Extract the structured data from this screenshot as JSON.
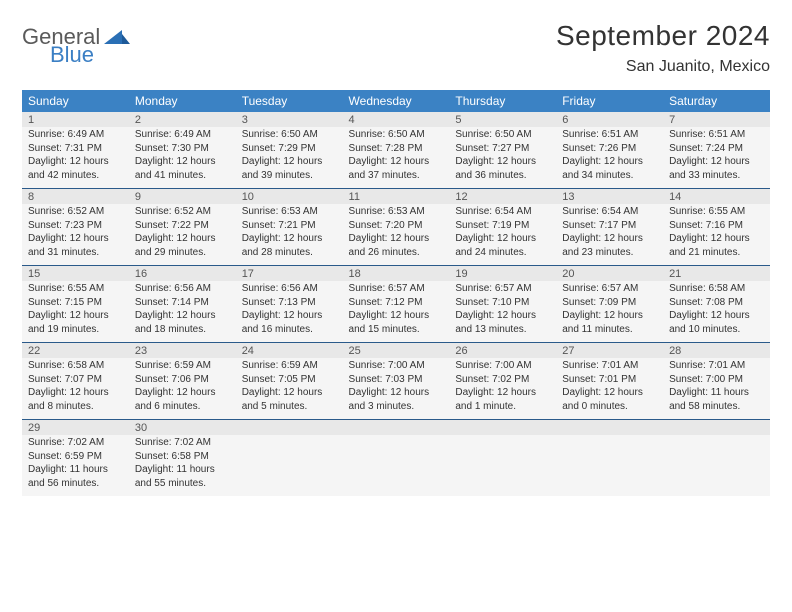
{
  "logo": {
    "word1": "General",
    "word2": "Blue",
    "icon_color": "#2a6fb5"
  },
  "title": "September 2024",
  "location": "San Juanito, Mexico",
  "colors": {
    "header_bg": "#3b82c4",
    "header_text": "#ffffff",
    "row_border": "#2a5a8a",
    "daynum_bg": "#e8e8e8",
    "detail_bg": "#f5f5f5",
    "text": "#333333"
  },
  "day_headers": [
    "Sunday",
    "Monday",
    "Tuesday",
    "Wednesday",
    "Thursday",
    "Friday",
    "Saturday"
  ],
  "weeks": [
    [
      {
        "n": "1",
        "sr": "Sunrise: 6:49 AM",
        "ss": "Sunset: 7:31 PM",
        "dl": "Daylight: 12 hours and 42 minutes."
      },
      {
        "n": "2",
        "sr": "Sunrise: 6:49 AM",
        "ss": "Sunset: 7:30 PM",
        "dl": "Daylight: 12 hours and 41 minutes."
      },
      {
        "n": "3",
        "sr": "Sunrise: 6:50 AM",
        "ss": "Sunset: 7:29 PM",
        "dl": "Daylight: 12 hours and 39 minutes."
      },
      {
        "n": "4",
        "sr": "Sunrise: 6:50 AM",
        "ss": "Sunset: 7:28 PM",
        "dl": "Daylight: 12 hours and 37 minutes."
      },
      {
        "n": "5",
        "sr": "Sunrise: 6:50 AM",
        "ss": "Sunset: 7:27 PM",
        "dl": "Daylight: 12 hours and 36 minutes."
      },
      {
        "n": "6",
        "sr": "Sunrise: 6:51 AM",
        "ss": "Sunset: 7:26 PM",
        "dl": "Daylight: 12 hours and 34 minutes."
      },
      {
        "n": "7",
        "sr": "Sunrise: 6:51 AM",
        "ss": "Sunset: 7:24 PM",
        "dl": "Daylight: 12 hours and 33 minutes."
      }
    ],
    [
      {
        "n": "8",
        "sr": "Sunrise: 6:52 AM",
        "ss": "Sunset: 7:23 PM",
        "dl": "Daylight: 12 hours and 31 minutes."
      },
      {
        "n": "9",
        "sr": "Sunrise: 6:52 AM",
        "ss": "Sunset: 7:22 PM",
        "dl": "Daylight: 12 hours and 29 minutes."
      },
      {
        "n": "10",
        "sr": "Sunrise: 6:53 AM",
        "ss": "Sunset: 7:21 PM",
        "dl": "Daylight: 12 hours and 28 minutes."
      },
      {
        "n": "11",
        "sr": "Sunrise: 6:53 AM",
        "ss": "Sunset: 7:20 PM",
        "dl": "Daylight: 12 hours and 26 minutes."
      },
      {
        "n": "12",
        "sr": "Sunrise: 6:54 AM",
        "ss": "Sunset: 7:19 PM",
        "dl": "Daylight: 12 hours and 24 minutes."
      },
      {
        "n": "13",
        "sr": "Sunrise: 6:54 AM",
        "ss": "Sunset: 7:17 PM",
        "dl": "Daylight: 12 hours and 23 minutes."
      },
      {
        "n": "14",
        "sr": "Sunrise: 6:55 AM",
        "ss": "Sunset: 7:16 PM",
        "dl": "Daylight: 12 hours and 21 minutes."
      }
    ],
    [
      {
        "n": "15",
        "sr": "Sunrise: 6:55 AM",
        "ss": "Sunset: 7:15 PM",
        "dl": "Daylight: 12 hours and 19 minutes."
      },
      {
        "n": "16",
        "sr": "Sunrise: 6:56 AM",
        "ss": "Sunset: 7:14 PM",
        "dl": "Daylight: 12 hours and 18 minutes."
      },
      {
        "n": "17",
        "sr": "Sunrise: 6:56 AM",
        "ss": "Sunset: 7:13 PM",
        "dl": "Daylight: 12 hours and 16 minutes."
      },
      {
        "n": "18",
        "sr": "Sunrise: 6:57 AM",
        "ss": "Sunset: 7:12 PM",
        "dl": "Daylight: 12 hours and 15 minutes."
      },
      {
        "n": "19",
        "sr": "Sunrise: 6:57 AM",
        "ss": "Sunset: 7:10 PM",
        "dl": "Daylight: 12 hours and 13 minutes."
      },
      {
        "n": "20",
        "sr": "Sunrise: 6:57 AM",
        "ss": "Sunset: 7:09 PM",
        "dl": "Daylight: 12 hours and 11 minutes."
      },
      {
        "n": "21",
        "sr": "Sunrise: 6:58 AM",
        "ss": "Sunset: 7:08 PM",
        "dl": "Daylight: 12 hours and 10 minutes."
      }
    ],
    [
      {
        "n": "22",
        "sr": "Sunrise: 6:58 AM",
        "ss": "Sunset: 7:07 PM",
        "dl": "Daylight: 12 hours and 8 minutes."
      },
      {
        "n": "23",
        "sr": "Sunrise: 6:59 AM",
        "ss": "Sunset: 7:06 PM",
        "dl": "Daylight: 12 hours and 6 minutes."
      },
      {
        "n": "24",
        "sr": "Sunrise: 6:59 AM",
        "ss": "Sunset: 7:05 PM",
        "dl": "Daylight: 12 hours and 5 minutes."
      },
      {
        "n": "25",
        "sr": "Sunrise: 7:00 AM",
        "ss": "Sunset: 7:03 PM",
        "dl": "Daylight: 12 hours and 3 minutes."
      },
      {
        "n": "26",
        "sr": "Sunrise: 7:00 AM",
        "ss": "Sunset: 7:02 PM",
        "dl": "Daylight: 12 hours and 1 minute."
      },
      {
        "n": "27",
        "sr": "Sunrise: 7:01 AM",
        "ss": "Sunset: 7:01 PM",
        "dl": "Daylight: 12 hours and 0 minutes."
      },
      {
        "n": "28",
        "sr": "Sunrise: 7:01 AM",
        "ss": "Sunset: 7:00 PM",
        "dl": "Daylight: 11 hours and 58 minutes."
      }
    ],
    [
      {
        "n": "29",
        "sr": "Sunrise: 7:02 AM",
        "ss": "Sunset: 6:59 PM",
        "dl": "Daylight: 11 hours and 56 minutes."
      },
      {
        "n": "30",
        "sr": "Sunrise: 7:02 AM",
        "ss": "Sunset: 6:58 PM",
        "dl": "Daylight: 11 hours and 55 minutes."
      },
      null,
      null,
      null,
      null,
      null
    ]
  ]
}
